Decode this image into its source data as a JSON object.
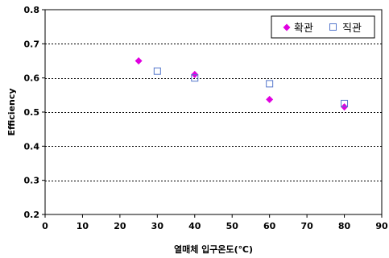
{
  "chart_data": {
    "type": "scatter",
    "title": "",
    "xlabel": "열매체 입구온도(℃)",
    "ylabel": "Efficiency",
    "xlim": [
      0,
      90
    ],
    "ylim": [
      0.2,
      0.8
    ],
    "x_ticks": [
      0,
      10,
      20,
      30,
      40,
      50,
      60,
      70,
      80,
      90
    ],
    "y_ticks": [
      0.2,
      0.3,
      0.4,
      0.5,
      0.6,
      0.7,
      0.8
    ],
    "x_tick_labels": [
      "0",
      "10",
      "20",
      "30",
      "40",
      "50",
      "60",
      "70",
      "80",
      "90"
    ],
    "y_tick_labels": [
      "0.2",
      "0.3",
      "0.4",
      "0.5",
      "0.6",
      "0.7",
      "0.8"
    ],
    "grid": "horizontal-dashed",
    "legend": "top-right",
    "series": [
      {
        "name": "확관",
        "marker": "diamond",
        "color": "#e000e0",
        "points": [
          {
            "x": 25,
            "y": 0.65
          },
          {
            "x": 40,
            "y": 0.61
          },
          {
            "x": 60,
            "y": 0.537
          },
          {
            "x": 80,
            "y": 0.515
          }
        ]
      },
      {
        "name": "직관",
        "marker": "square-open",
        "color": "#5577cc",
        "points": [
          {
            "x": 30,
            "y": 0.62
          },
          {
            "x": 40,
            "y": 0.6
          },
          {
            "x": 60,
            "y": 0.583
          },
          {
            "x": 80,
            "y": 0.525
          }
        ]
      }
    ]
  }
}
